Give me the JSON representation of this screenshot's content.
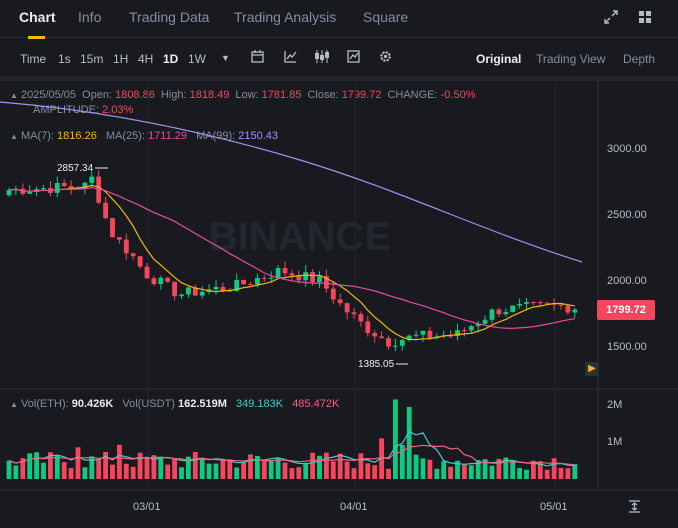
{
  "tabs": [
    "Chart",
    "Info",
    "Trading Data",
    "Trading Analysis",
    "Square"
  ],
  "intervals": [
    "Time",
    "1s",
    "15m",
    "1H",
    "4H",
    "1D",
    "1W"
  ],
  "active_interval": "1D",
  "views": [
    "Original",
    "Trading View",
    "Depth"
  ],
  "active_view": "Original",
  "ohlc": {
    "date": "2025/05/05",
    "open_label": "Open:",
    "open": "1808.86",
    "high_label": "High:",
    "high": "1818.49",
    "low_label": "Low:",
    "low": "1781.85",
    "close_label": "Close:",
    "close": "1799.72",
    "change_label": "CHANGE:",
    "change": "-0.50%",
    "amplitude_label": "AMPLITUDE:",
    "amplitude": "2.03%"
  },
  "ma": {
    "ma7_label": "MA(7):",
    "ma7": "1816.26",
    "ma25_label": "MA(25):",
    "ma25": "1711.29",
    "ma99_label": "MA(99):",
    "ma99": "2150.43"
  },
  "volume_info": {
    "vol_eth_label": "Vol(ETH):",
    "vol_eth": "90.426K",
    "vol_usdt_label": "Vol(USDT)",
    "vol_usdt": "162.519M",
    "ma_a": "349.183K",
    "ma_b": "485.472K"
  },
  "current_price": "1799.72",
  "watermark": "BINANCE",
  "chart_data": {
    "type": "candlestick",
    "price_ticks": [
      "3000.00",
      "2500.00",
      "2000.00",
      "1500.00"
    ],
    "price_tick_values": [
      3000,
      2500,
      2000,
      1500
    ],
    "volume_ticks": [
      "2M",
      "1M"
    ],
    "volume_tick_values": [
      2000000,
      1000000
    ],
    "date_ticks": [
      "03/01",
      "04/01",
      "05/01"
    ],
    "high_annotation": "2857.34",
    "low_annotation": "1385.05",
    "colors": {
      "up": "#0ecb81",
      "down": "#f6465d",
      "ma7": "#f0b90b",
      "ma25": "#e94b9f",
      "ma99": "#a391f0"
    }
  }
}
